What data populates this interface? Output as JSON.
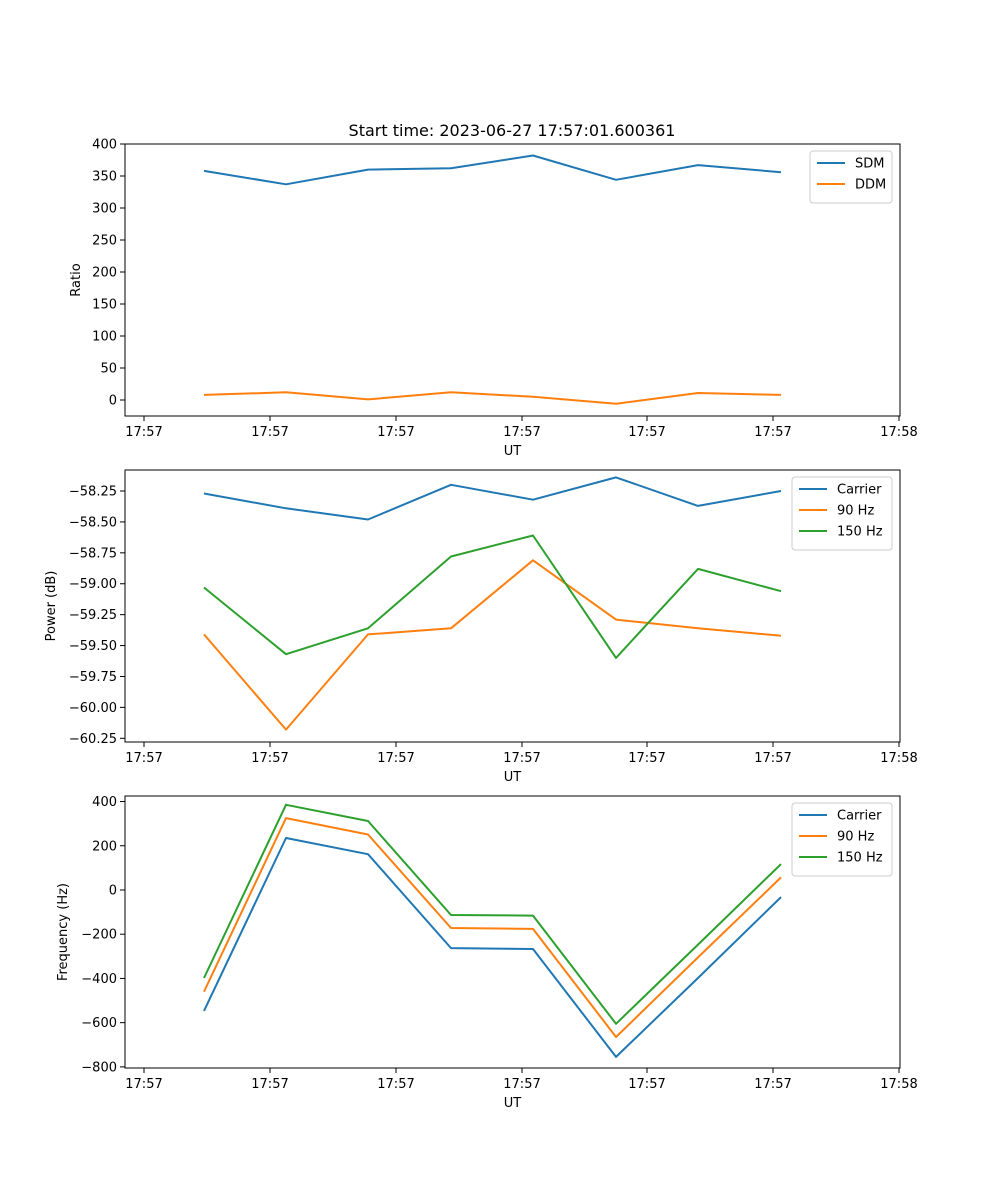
{
  "chart_data": [
    {
      "type": "line",
      "title": "Start time: 2023-06-27 17:57:01.600361",
      "xlabel": "UT",
      "ylabel": "Ratio",
      "x_tick_labels": [
        "17:57",
        "17:57",
        "17:57",
        "17:57",
        "17:57",
        "17:57",
        "17:58"
      ],
      "y_ticks": [
        0,
        50,
        100,
        150,
        200,
        250,
        300,
        350,
        400
      ],
      "ylim": [
        -25,
        400
      ],
      "grid": false,
      "legend_position": "upper right",
      "series": [
        {
          "name": "SDM",
          "color": "#1f77b4",
          "values": [
            358,
            337,
            360,
            362,
            382,
            344,
            367,
            356
          ]
        },
        {
          "name": "DDM",
          "color": "#ff7f0e",
          "values": [
            8,
            12,
            1,
            12,
            5,
            -6,
            11,
            8
          ]
        }
      ]
    },
    {
      "type": "line",
      "title": "",
      "xlabel": "UT",
      "ylabel": "Power (dB)",
      "x_tick_labels": [
        "17:57",
        "17:57",
        "17:57",
        "17:57",
        "17:57",
        "17:57",
        "17:58"
      ],
      "y_ticks": [
        -60.25,
        -60.0,
        -59.75,
        -59.5,
        -59.25,
        -59.0,
        -58.75,
        -58.5,
        -58.25
      ],
      "y_tick_labels": [
        "−60.25",
        "−60.00",
        "−59.75",
        "−59.50",
        "−59.25",
        "−59.00",
        "−58.75",
        "−58.50",
        "−58.25"
      ],
      "ylim": [
        -60.28,
        -58.08
      ],
      "grid": false,
      "legend_position": "upper right",
      "series": [
        {
          "name": "Carrier",
          "color": "#1f77b4",
          "values": [
            -58.27,
            -58.39,
            -58.48,
            -58.2,
            -58.32,
            -58.14,
            -58.37,
            -58.25
          ]
        },
        {
          "name": "90 Hz",
          "color": "#ff7f0e",
          "values": [
            -59.41,
            -60.18,
            -59.41,
            -59.36,
            -58.81,
            -59.29,
            -59.36,
            -59.42
          ]
        },
        {
          "name": "150 Hz",
          "color": "#2ca02c",
          "values": [
            -59.03,
            -59.57,
            -59.36,
            -58.78,
            -58.61,
            -59.6,
            -58.88,
            -59.06
          ]
        }
      ]
    },
    {
      "type": "line",
      "title": "",
      "xlabel": "UT",
      "ylabel": "Frequency (Hz)",
      "x_tick_labels": [
        "17:57",
        "17:57",
        "17:57",
        "17:57",
        "17:57",
        "17:57",
        "17:58"
      ],
      "y_ticks": [
        -800,
        -600,
        -400,
        -200,
        0,
        200,
        400
      ],
      "y_tick_labels": [
        "−800",
        "−600",
        "−400",
        "−200",
        "0",
        "200",
        "400"
      ],
      "ylim": [
        -805,
        425
      ],
      "grid": false,
      "legend_position": "upper right",
      "series": [
        {
          "name": "Carrier",
          "color": "#1f77b4",
          "values": [
            -547,
            235,
            162,
            -263,
            -267,
            -755,
            -398,
            -32
          ]
        },
        {
          "name": "90 Hz",
          "color": "#ff7f0e",
          "values": [
            -460,
            325,
            251,
            -172,
            -176,
            -665,
            -305,
            57
          ]
        },
        {
          "name": "150 Hz",
          "color": "#2ca02c",
          "values": [
            -398,
            385,
            312,
            -113,
            -116,
            -605,
            -247,
            117
          ]
        }
      ]
    }
  ]
}
